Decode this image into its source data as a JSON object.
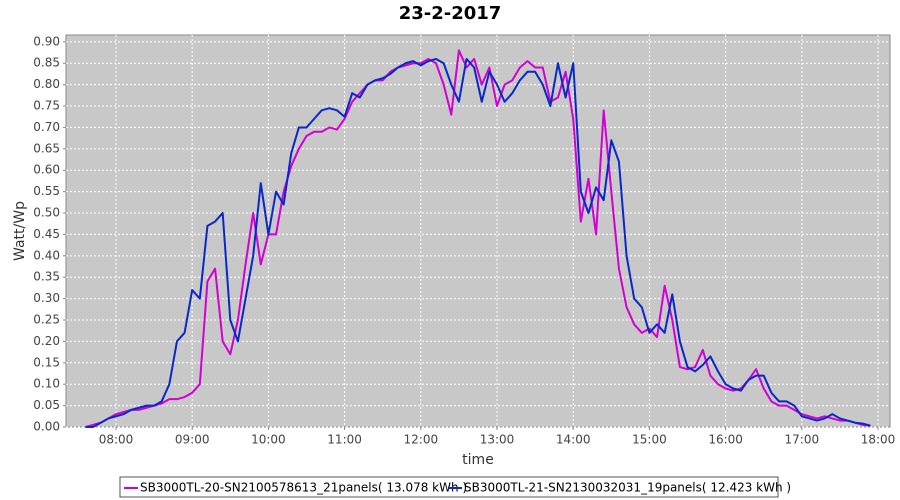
{
  "chart_data": {
    "type": "line",
    "title": "23-2-2017",
    "x_label": "time",
    "y_label": "Watt/Wp",
    "x": [
      7.6,
      7.7,
      7.8,
      7.9,
      8.0,
      8.1,
      8.2,
      8.3,
      8.4,
      8.5,
      8.6,
      8.7,
      8.8,
      8.9,
      9.0,
      9.1,
      9.2,
      9.3,
      9.4,
      9.5,
      9.6,
      9.7,
      9.8,
      9.9,
      10.0,
      10.1,
      10.2,
      10.3,
      10.4,
      10.5,
      10.6,
      10.7,
      10.8,
      10.9,
      11.0,
      11.1,
      11.2,
      11.3,
      11.4,
      11.5,
      11.6,
      11.7,
      11.8,
      11.9,
      12.0,
      12.1,
      12.2,
      12.3,
      12.4,
      12.5,
      12.6,
      12.7,
      12.8,
      12.9,
      13.0,
      13.1,
      13.2,
      13.3,
      13.4,
      13.5,
      13.6,
      13.7,
      13.8,
      13.9,
      14.0,
      14.1,
      14.2,
      14.3,
      14.4,
      14.5,
      14.6,
      14.7,
      14.8,
      14.9,
      15.0,
      15.1,
      15.2,
      15.3,
      15.4,
      15.5,
      15.6,
      15.7,
      15.8,
      15.9,
      16.0,
      16.1,
      16.2,
      16.3,
      16.4,
      16.5,
      16.6,
      16.7,
      16.8,
      16.9,
      17.0,
      17.1,
      17.2,
      17.3,
      17.4,
      17.5,
      17.6,
      17.7,
      17.8,
      17.9
    ],
    "series": [
      {
        "name": "SB3000TL-20-SN2100578613_21panels( 13.078 kWh )",
        "color": "#d200d2",
        "values": [
          0,
          0.005,
          0.01,
          0.02,
          0.03,
          0.035,
          0.04,
          0.04,
          0.045,
          0.05,
          0.055,
          0.065,
          0.065,
          0.07,
          0.08,
          0.1,
          0.34,
          0.37,
          0.2,
          0.17,
          0.25,
          0.38,
          0.5,
          0.38,
          0.45,
          0.45,
          0.55,
          0.61,
          0.65,
          0.68,
          0.69,
          0.69,
          0.7,
          0.695,
          0.72,
          0.76,
          0.78,
          0.8,
          0.81,
          0.81,
          0.83,
          0.84,
          0.845,
          0.85,
          0.85,
          0.86,
          0.85,
          0.8,
          0.73,
          0.88,
          0.84,
          0.86,
          0.8,
          0.84,
          0.75,
          0.8,
          0.81,
          0.84,
          0.855,
          0.84,
          0.84,
          0.76,
          0.77,
          0.83,
          0.72,
          0.48,
          0.58,
          0.45,
          0.74,
          0.55,
          0.37,
          0.28,
          0.24,
          0.22,
          0.23,
          0.21,
          0.33,
          0.25,
          0.14,
          0.135,
          0.14,
          0.18,
          0.12,
          0.1,
          0.09,
          0.085,
          0.09,
          0.11,
          0.135,
          0.09,
          0.06,
          0.05,
          0.05,
          0.04,
          0.03,
          0.025,
          0.02,
          0.025,
          0.02,
          0.015,
          0.015,
          0.01,
          0.005,
          0.003
        ]
      },
      {
        "name": "SB3000TL-21-SN2130032031_19panels( 12.423 kWh )",
        "color": "#0a28c8",
        "values": [
          0,
          0,
          0.01,
          0.02,
          0.025,
          0.03,
          0.04,
          0.045,
          0.05,
          0.05,
          0.06,
          0.1,
          0.2,
          0.22,
          0.32,
          0.3,
          0.47,
          0.48,
          0.5,
          0.25,
          0.2,
          0.3,
          0.4,
          0.57,
          0.45,
          0.55,
          0.52,
          0.64,
          0.7,
          0.7,
          0.72,
          0.74,
          0.745,
          0.74,
          0.725,
          0.78,
          0.77,
          0.8,
          0.81,
          0.815,
          0.825,
          0.84,
          0.85,
          0.855,
          0.845,
          0.855,
          0.86,
          0.85,
          0.8,
          0.76,
          0.86,
          0.84,
          0.76,
          0.83,
          0.8,
          0.76,
          0.78,
          0.81,
          0.83,
          0.83,
          0.8,
          0.75,
          0.85,
          0.77,
          0.85,
          0.55,
          0.5,
          0.56,
          0.53,
          0.67,
          0.62,
          0.4,
          0.3,
          0.28,
          0.22,
          0.24,
          0.22,
          0.31,
          0.2,
          0.14,
          0.13,
          0.145,
          0.165,
          0.13,
          0.1,
          0.09,
          0.085,
          0.11,
          0.12,
          0.12,
          0.08,
          0.06,
          0.06,
          0.05,
          0.025,
          0.02,
          0.015,
          0.02,
          0.03,
          0.02,
          0.015,
          0.01,
          0.008,
          0.003
        ]
      }
    ],
    "xlim": [
      7.344,
      18.157
    ],
    "ylim": [
      0,
      0.916
    ],
    "xticks": [
      {
        "value": 8,
        "label": "08:00"
      },
      {
        "value": 9,
        "label": "09:00"
      },
      {
        "value": 10,
        "label": "10:00"
      },
      {
        "value": 11,
        "label": "11:00"
      },
      {
        "value": 12,
        "label": "12:00"
      },
      {
        "value": 13,
        "label": "13:00"
      },
      {
        "value": 14,
        "label": "14:00"
      },
      {
        "value": 15,
        "label": "15:00"
      },
      {
        "value": 16,
        "label": "16:00"
      },
      {
        "value": 17,
        "label": "17:00"
      },
      {
        "value": 18,
        "label": "18:00"
      }
    ],
    "yticks": [
      {
        "value": 0,
        "label": "0.00"
      },
      {
        "value": 0.05,
        "label": "0.05"
      },
      {
        "value": 0.1,
        "label": "0.10"
      },
      {
        "value": 0.15,
        "label": "0.15"
      },
      {
        "value": 0.2,
        "label": "0.20"
      },
      {
        "value": 0.25,
        "label": "0.25"
      },
      {
        "value": 0.3,
        "label": "0.30"
      },
      {
        "value": 0.35,
        "label": "0.35"
      },
      {
        "value": 0.4,
        "label": "0.40"
      },
      {
        "value": 0.45,
        "label": "0.45"
      },
      {
        "value": 0.5,
        "label": "0.50"
      },
      {
        "value": 0.55,
        "label": "0.55"
      },
      {
        "value": 0.6,
        "label": "0.60"
      },
      {
        "value": 0.65,
        "label": "0.65"
      },
      {
        "value": 0.7,
        "label": "0.70"
      },
      {
        "value": 0.75,
        "label": "0.75"
      },
      {
        "value": 0.8,
        "label": "0.80"
      },
      {
        "value": 0.85,
        "label": "0.85"
      },
      {
        "value": 0.9,
        "label": "0.90"
      }
    ],
    "grid": true,
    "legend": "bottom"
  }
}
